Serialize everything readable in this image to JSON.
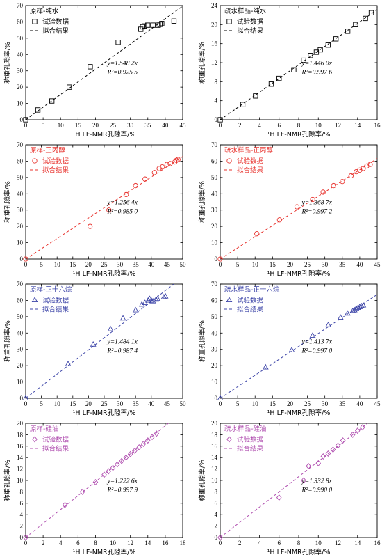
{
  "chart_data": [
    {
      "type": "scatter",
      "title": "原样-纯水",
      "xlabel": "¹H LF-NMR孔隙率/%",
      "ylabel": "称重孔隙率/%",
      "xlim": [
        0,
        45
      ],
      "ylim": [
        0,
        70
      ],
      "xticks": [
        0,
        5,
        10,
        15,
        20,
        25,
        30,
        35,
        40,
        45
      ],
      "yticks": [
        0,
        10,
        20,
        30,
        40,
        50,
        60,
        70
      ],
      "color": "#000000",
      "marker": "square",
      "legend": [
        "试验数据",
        "拟合结果"
      ],
      "equation": "y=1.548 2x",
      "r2": "R²=0.925 5",
      "slope": 1.5482,
      "series": [
        {
          "name": "试验数据",
          "x": [
            3.5,
            7.5,
            12.5,
            18.5,
            26.5,
            33.0,
            33.5,
            34.0,
            35.0,
            36.5,
            38.0,
            38.5,
            39.0,
            42.5
          ],
          "y": [
            6.0,
            11.5,
            20.0,
            32.5,
            47.5,
            55.5,
            57.0,
            57.5,
            58.0,
            58.0,
            58.0,
            58.5,
            59.0,
            60.5
          ]
        }
      ]
    },
    {
      "type": "scatter",
      "title": "疏水样品-纯水",
      "xlabel": "¹H LF-NMR孔隙率/%",
      "ylabel": "称重孔隙率/%",
      "xlim": [
        0,
        16
      ],
      "ylim": [
        0,
        24
      ],
      "xticks": [
        0,
        2,
        4,
        6,
        8,
        10,
        12,
        14,
        16
      ],
      "yticks": [
        0,
        4,
        8,
        12,
        16,
        20,
        24
      ],
      "color": "#000000",
      "marker": "square",
      "legend": [
        "试验数据",
        "拟合结果"
      ],
      "equation": "y=1.446 0x",
      "r2": "R²=0.997 6",
      "slope": 1.446,
      "series": [
        {
          "name": "试验数据",
          "x": [
            2.3,
            3.6,
            5.2,
            6.0,
            7.5,
            8.5,
            9.2,
            9.8,
            10.2,
            11.0,
            11.8,
            13.0,
            13.8,
            14.8,
            15.4
          ],
          "y": [
            3.2,
            5.0,
            7.5,
            8.7,
            10.5,
            12.5,
            13.5,
            14.2,
            14.7,
            15.7,
            17.0,
            18.6,
            20.0,
            21.3,
            22.5
          ]
        }
      ]
    },
    {
      "type": "scatter",
      "title": "原样-正丙醇",
      "xlabel": "¹H LF-NMR孔隙率/%",
      "ylabel": "称重孔隙率/%",
      "xlim": [
        0,
        50
      ],
      "ylim": [
        0,
        70
      ],
      "xticks": [
        0,
        5,
        10,
        15,
        20,
        25,
        30,
        35,
        40,
        45,
        50
      ],
      "yticks": [
        0,
        10,
        20,
        30,
        40,
        50,
        60,
        70
      ],
      "color": "#e8332e",
      "marker": "circle",
      "legend": [
        "试验数据",
        "拟合结果"
      ],
      "equation": "y=1.256 4x",
      "r2": "R²=0.985 0",
      "slope": 1.2564,
      "series": [
        {
          "name": "试验数据",
          "x": [
            20.5,
            26.5,
            32.0,
            35.0,
            38.0,
            41.0,
            42.5,
            43.5,
            45.0,
            46.0,
            47.5,
            48.0,
            48.5
          ],
          "y": [
            20.0,
            30.0,
            39.5,
            45.0,
            49.0,
            53.0,
            55.5,
            56.5,
            58.0,
            58.5,
            59.5,
            60.5,
            61.0
          ]
        }
      ]
    },
    {
      "type": "scatter",
      "title": "疏水样品-正丙醇",
      "xlabel": "¹H LF-NMR孔隙率/%",
      "ylabel": "称重孔隙率/%",
      "xlim": [
        0,
        45
      ],
      "ylim": [
        0,
        70
      ],
      "xticks": [
        0,
        5,
        10,
        15,
        20,
        25,
        30,
        35,
        40,
        45
      ],
      "yticks": [
        0,
        10,
        20,
        30,
        40,
        50,
        60,
        70
      ],
      "color": "#e8332e",
      "marker": "circle",
      "legend": [
        "试验数据",
        "拟合结果"
      ],
      "equation": "y=1.368 7x",
      "r2": "R²=0.997 2",
      "slope": 1.3687,
      "series": [
        {
          "name": "试验数据",
          "x": [
            10.5,
            17.0,
            22.0,
            26.5,
            29.5,
            32.5,
            35.0,
            37.5,
            39.0,
            40.0,
            41.0,
            42.0,
            43.0
          ],
          "y": [
            15.5,
            24.0,
            32.0,
            36.5,
            41.0,
            45.0,
            47.5,
            51.0,
            53.5,
            54.5,
            55.5,
            57.0,
            58.0
          ]
        }
      ]
    },
    {
      "type": "scatter",
      "title": "原样-正十六烷",
      "xlabel": "¹H LF-NMR孔隙率/%",
      "ylabel": "称重孔隙率/%",
      "xlim": [
        0,
        50
      ],
      "ylim": [
        0,
        70
      ],
      "xticks": [
        0,
        5,
        10,
        15,
        20,
        25,
        30,
        35,
        40,
        45,
        50
      ],
      "yticks": [
        0,
        10,
        20,
        30,
        40,
        50,
        60,
        70
      ],
      "color": "#3d45a8",
      "marker": "triangle",
      "legend": [
        "试验数据",
        "拟合结果"
      ],
      "equation": "y=1.484 1x",
      "r2": "R²=0.987 4",
      "slope": 1.4841,
      "series": [
        {
          "name": "试验数据",
          "x": [
            13.5,
            21.5,
            27.0,
            31.0,
            35.0,
            37.0,
            38.0,
            39.0,
            39.5,
            40.0,
            40.5,
            41.5,
            42.0,
            44.0,
            44.5
          ],
          "y": [
            21.0,
            33.0,
            42.5,
            49.0,
            54.0,
            57.5,
            58.5,
            60.0,
            61.0,
            60.0,
            59.5,
            60.5,
            61.0,
            62.0,
            62.5
          ]
        }
      ]
    },
    {
      "type": "scatter",
      "title": "疏水样品-正十六烷",
      "xlabel": "¹H LF-NMR孔隙率/%",
      "ylabel": "称重孔隙率/%",
      "xlim": [
        0,
        45
      ],
      "ylim": [
        0,
        70
      ],
      "xticks": [
        0,
        5,
        10,
        15,
        20,
        25,
        30,
        35,
        40,
        45
      ],
      "yticks": [
        0,
        10,
        20,
        30,
        40,
        50,
        60,
        70
      ],
      "color": "#3d45a8",
      "marker": "triangle",
      "legend": [
        "试验数据",
        "拟合结果"
      ],
      "equation": "y=1.413 7x",
      "r2": "R²=0.997 0",
      "slope": 1.4137,
      "series": [
        {
          "name": "试验数据",
          "x": [
            13.0,
            20.5,
            26.5,
            31.0,
            34.5,
            36.5,
            38.0,
            38.5,
            39.0,
            39.5,
            40.0,
            40.5,
            41.0
          ],
          "y": [
            19.0,
            29.5,
            38.5,
            45.0,
            49.5,
            52.0,
            53.5,
            54.0,
            55.0,
            55.5,
            56.0,
            56.5,
            57.0
          ]
        }
      ]
    },
    {
      "type": "scatter",
      "title": "原样-硅油",
      "xlabel": "¹H LF-NMR孔隙率/%",
      "ylabel": "称重孔隙率/%",
      "xlim": [
        0,
        18
      ],
      "ylim": [
        0,
        20
      ],
      "xticks": [
        0,
        2,
        4,
        6,
        8,
        10,
        12,
        14,
        16,
        18
      ],
      "yticks": [
        0,
        2,
        4,
        6,
        8,
        10,
        12,
        14,
        16,
        18,
        20
      ],
      "color": "#b04fb0",
      "marker": "diamond",
      "legend": [
        "试验数据",
        "拟合结果"
      ],
      "equation": "y=1.222 6x",
      "r2": "R²=0.997 9",
      "slope": 1.2226,
      "series": [
        {
          "name": "试验数据",
          "x": [
            4.5,
            6.5,
            8.0,
            9.0,
            9.5,
            10.0,
            10.5,
            11.0,
            11.5,
            12.0,
            12.5,
            13.0,
            13.5,
            14.0,
            14.5,
            15.0
          ],
          "y": [
            5.7,
            8.0,
            9.7,
            11.0,
            11.6,
            12.2,
            12.8,
            13.4,
            14.0,
            14.6,
            15.2,
            15.8,
            16.4,
            17.0,
            17.6,
            18.2
          ]
        }
      ]
    },
    {
      "type": "scatter",
      "title": "疏水样品-硅油",
      "xlabel": "¹H LF-NMR孔隙率/%",
      "ylabel": "称重孔隙率/%",
      "xlim": [
        0,
        16
      ],
      "ylim": [
        0,
        20
      ],
      "xticks": [
        0,
        2,
        4,
        6,
        8,
        10,
        12,
        14,
        16
      ],
      "yticks": [
        0,
        2,
        4,
        6,
        8,
        10,
        12,
        14,
        16,
        18,
        20
      ],
      "color": "#b04fb0",
      "marker": "diamond",
      "legend": [
        "试验数据",
        "拟合结果"
      ],
      "equation": "y=1.332 8x",
      "r2": "R²=0.990 0",
      "slope": 1.3328,
      "series": [
        {
          "name": "试验数据",
          "x": [
            6.0,
            8.5,
            9.0,
            10.0,
            10.5,
            11.0,
            11.5,
            12.0,
            12.5,
            13.5,
            14.0,
            14.5
          ],
          "y": [
            7.0,
            10.0,
            12.5,
            13.0,
            14.2,
            14.7,
            15.4,
            16.1,
            17.0,
            18.0,
            18.7,
            19.3
          ]
        }
      ]
    }
  ]
}
